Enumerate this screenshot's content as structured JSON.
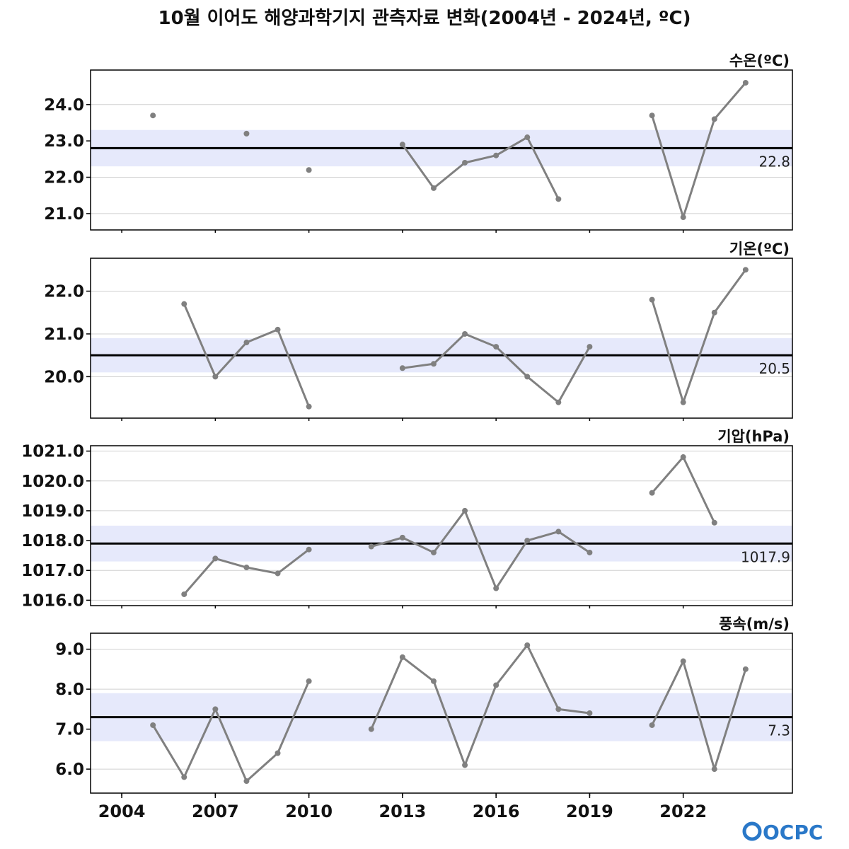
{
  "title": "10월 이어도 해양과학기지 관측자료 변화(2004년 - 2024년, ºC)",
  "logo": "OCPC",
  "colors": {
    "series_line": "#808080",
    "mean_line": "#000000",
    "band": "#e6e9fb",
    "grid": "#d0d0d0"
  },
  "chart_data": [
    {
      "type": "line",
      "label": "수온(ºC)",
      "x": [
        2004,
        2005,
        2006,
        2007,
        2008,
        2009,
        2010,
        2011,
        2012,
        2013,
        2014,
        2015,
        2016,
        2017,
        2018,
        2019,
        2020,
        2021,
        2022,
        2023,
        2024
      ],
      "values": [
        null,
        23.7,
        null,
        null,
        23.2,
        null,
        22.2,
        null,
        null,
        22.9,
        21.7,
        22.4,
        22.6,
        23.1,
        21.4,
        null,
        null,
        23.7,
        20.9,
        23.6,
        24.6
      ],
      "mean": 22.8,
      "mean_label": "22.8",
      "band": [
        22.3,
        23.3
      ],
      "ylim": [
        20.55,
        24.95
      ],
      "yticks": [
        21.0,
        22.0,
        23.0,
        24.0
      ],
      "ytick_labels": [
        "21.0",
        "22.0",
        "23.0",
        "24.0"
      ]
    },
    {
      "type": "line",
      "label": "기온(ºC)",
      "x": [
        2004,
        2005,
        2006,
        2007,
        2008,
        2009,
        2010,
        2011,
        2012,
        2013,
        2014,
        2015,
        2016,
        2017,
        2018,
        2019,
        2020,
        2021,
        2022,
        2023,
        2024
      ],
      "values": [
        null,
        null,
        21.7,
        20.0,
        20.8,
        21.1,
        19.3,
        null,
        null,
        20.2,
        20.3,
        21.0,
        20.7,
        20.0,
        19.4,
        20.7,
        null,
        21.8,
        19.4,
        21.5,
        22.5
      ],
      "mean": 20.5,
      "mean_label": "20.5",
      "band": [
        20.1,
        20.9
      ],
      "ylim": [
        19.03,
        22.77
      ],
      "yticks": [
        20.0,
        21.0,
        22.0
      ],
      "ytick_labels": [
        "20.0",
        "21.0",
        "22.0"
      ]
    },
    {
      "type": "line",
      "label": "기압(hPa)",
      "x": [
        2004,
        2005,
        2006,
        2007,
        2008,
        2009,
        2010,
        2011,
        2012,
        2013,
        2014,
        2015,
        2016,
        2017,
        2018,
        2019,
        2020,
        2021,
        2022,
        2023,
        2024
      ],
      "values": [
        null,
        null,
        1016.2,
        1017.4,
        1017.1,
        1016.9,
        1017.7,
        null,
        1017.8,
        1018.1,
        1017.6,
        1019.0,
        1016.4,
        1018.0,
        1018.3,
        1017.6,
        null,
        1019.6,
        1020.8,
        1018.6,
        null
      ],
      "mean": 1017.9,
      "mean_label": "1017.9",
      "band": [
        1017.3,
        1018.5
      ],
      "ylim": [
        1015.82,
        1021.18
      ],
      "yticks": [
        1016.0,
        1017.0,
        1018.0,
        1019.0,
        1020.0,
        1021.0
      ],
      "ytick_labels": [
        "1016.0",
        "1017.0",
        "1018.0",
        "1019.0",
        "1020.0",
        "1021.0"
      ]
    },
    {
      "type": "line",
      "label": "풍속(m/s)",
      "x": [
        2004,
        2005,
        2006,
        2007,
        2008,
        2009,
        2010,
        2011,
        2012,
        2013,
        2014,
        2015,
        2016,
        2017,
        2018,
        2019,
        2020,
        2021,
        2022,
        2023,
        2024
      ],
      "values": [
        null,
        7.1,
        5.8,
        7.5,
        5.7,
        6.4,
        8.2,
        null,
        7.0,
        8.8,
        8.2,
        6.1,
        8.1,
        9.1,
        7.5,
        7.4,
        null,
        7.1,
        8.7,
        6.0,
        8.5
      ],
      "mean": 7.3,
      "mean_label": "7.3",
      "band": [
        6.7,
        7.9
      ],
      "ylim": [
        5.4,
        9.4
      ],
      "yticks": [
        6.0,
        7.0,
        8.0,
        9.0
      ],
      "ytick_labels": [
        "6.0",
        "7.0",
        "8.0",
        "9.0"
      ]
    }
  ],
  "x_axis": {
    "min": 2003,
    "max": 2025.5,
    "ticks": [
      2004,
      2007,
      2010,
      2013,
      2016,
      2019,
      2022
    ],
    "tick_labels": [
      "2004",
      "2007",
      "2010",
      "2013",
      "2016",
      "2019",
      "2022"
    ],
    "minor_ticks": [
      2004,
      2007,
      2010,
      2013,
      2016,
      2019,
      2022
    ]
  }
}
